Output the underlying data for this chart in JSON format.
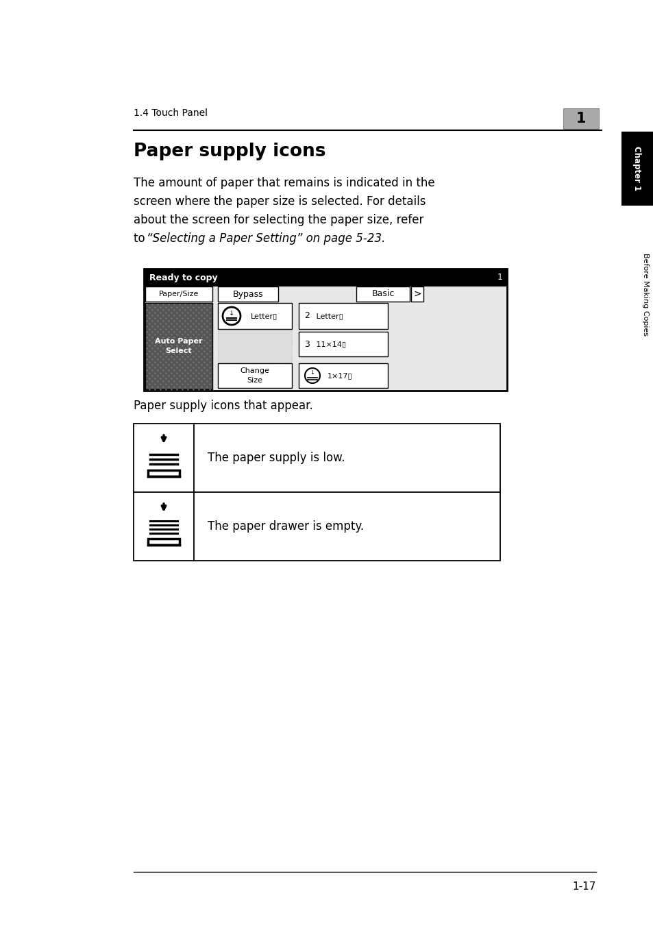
{
  "bg_color": "#ffffff",
  "section_label": "1.4 Touch Panel",
  "chapter_num": "1",
  "title": "Paper supply icons",
  "body_line1": "The amount of paper that remains is indicated in the",
  "body_line2": "screen where the paper size is selected. For details",
  "body_line3": "about the screen for selecting the paper size, refer",
  "body_line4_pre": "to ",
  "body_line4_italic": "“Selecting a Paper Setting” on page 5-23.",
  "caption_text": "Paper supply icons that appear.",
  "row1_text": "The paper supply is low.",
  "row2_text": "The paper drawer is empty.",
  "chapter_side_label": "Chapter 1",
  "side_label2": "Before Making Copies",
  "footer_text": "1-17"
}
